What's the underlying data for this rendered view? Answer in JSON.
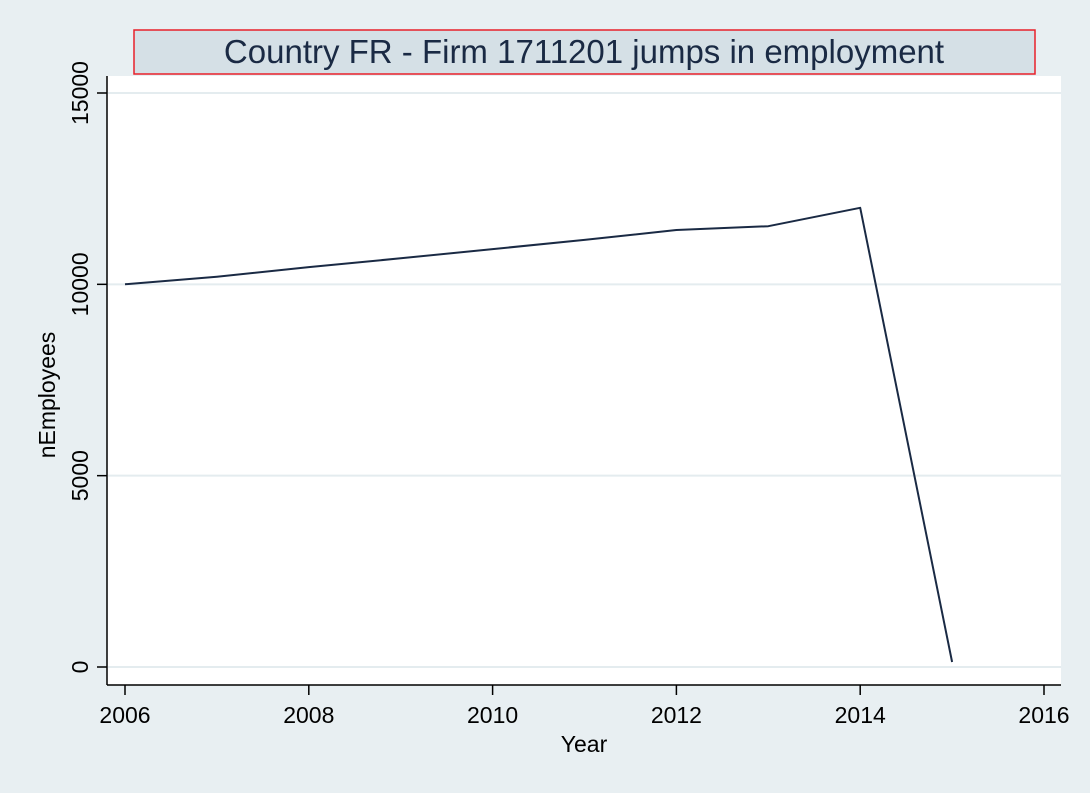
{
  "chart_data": {
    "type": "line",
    "title": "Country FR - Firm 1711201  jumps in employment",
    "xlabel": "Year",
    "ylabel": "nEmployees",
    "xlim": [
      2006,
      2016
    ],
    "ylim": [
      0,
      15000
    ],
    "xticks": [
      2006,
      2008,
      2010,
      2012,
      2014,
      2016
    ],
    "yticks": [
      0,
      5000,
      10000,
      15000
    ],
    "grid": true,
    "legend": "none",
    "series": [
      {
        "color": "#1a2a44",
        "x": [
          2006,
          2007,
          2008,
          2009,
          2010,
          2011,
          2012,
          2013,
          2014,
          2015
        ],
        "y": [
          10000,
          10200,
          10450,
          10680,
          10920,
          11160,
          11420,
          11520,
          12000,
          130
        ]
      }
    ]
  },
  "colors": {
    "background": "#e8eff2",
    "plot_area": "#ffffff",
    "gridline": "#e4ecef",
    "title_box_fill": "#d5e0e6",
    "title_box_border": "#e8202a"
  }
}
